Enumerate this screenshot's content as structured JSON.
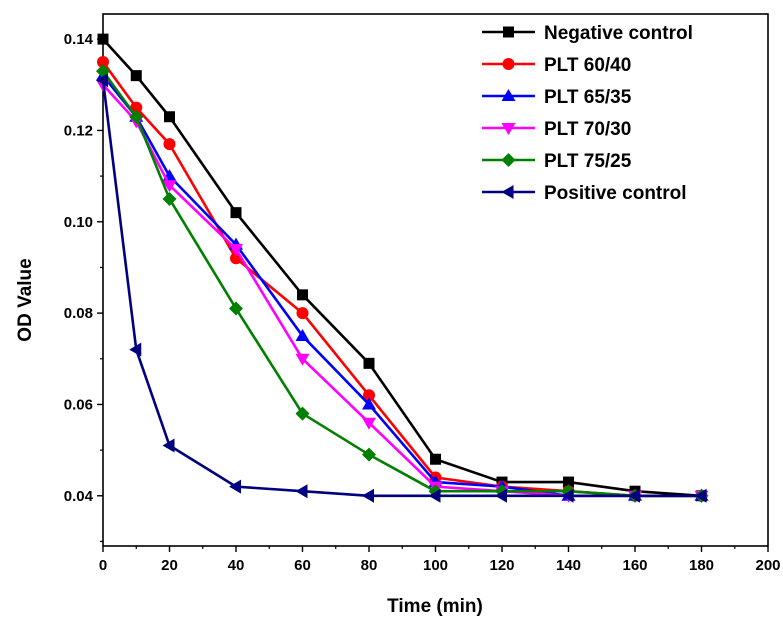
{
  "chart_data": {
    "type": "line",
    "xlabel": "Time (min)",
    "ylabel": "OD Value",
    "xlim": [
      0,
      200
    ],
    "ylim": [
      0.029,
      0.1455
    ],
    "xticks": [
      0,
      20,
      40,
      60,
      80,
      100,
      120,
      140,
      160,
      180,
      200
    ],
    "yticks": [
      0.04,
      0.06,
      0.08,
      0.1,
      0.12,
      0.14
    ],
    "xtick_labels": [
      "0",
      "20",
      "40",
      "60",
      "80",
      "100",
      "120",
      "140",
      "160",
      "180",
      "200"
    ],
    "ytick_labels": [
      "0.04",
      "0.06",
      "0.08",
      "0.10",
      "0.12",
      "0.14"
    ],
    "grid": false,
    "legend_position": "top-right",
    "x": [
      0,
      10,
      20,
      40,
      60,
      80,
      100,
      120,
      140,
      160,
      180
    ],
    "series": [
      {
        "name": "Negative control",
        "color": "#000000",
        "marker": "square",
        "values": [
          0.14,
          0.132,
          0.123,
          0.102,
          0.084,
          0.069,
          0.048,
          0.043,
          0.043,
          0.041,
          0.04
        ]
      },
      {
        "name": "PLT 60/40",
        "color": "#ff0000",
        "marker": "circle",
        "values": [
          0.135,
          0.125,
          0.117,
          0.092,
          0.08,
          0.062,
          0.044,
          0.042,
          0.041,
          0.04,
          0.04
        ]
      },
      {
        "name": "PLT 65/35",
        "color": "#0000ff",
        "marker": "triangle-up",
        "values": [
          0.132,
          0.123,
          0.11,
          0.095,
          0.075,
          0.06,
          0.043,
          0.042,
          0.04,
          0.04,
          0.04
        ]
      },
      {
        "name": "PLT 70/30",
        "color": "#ff00ff",
        "marker": "triangle-down",
        "values": [
          0.13,
          0.122,
          0.108,
          0.094,
          0.07,
          0.056,
          0.042,
          0.041,
          0.04,
          0.04,
          0.04
        ]
      },
      {
        "name": "PLT 75/25",
        "color": "#008000",
        "marker": "diamond",
        "values": [
          0.133,
          0.123,
          0.105,
          0.081,
          0.058,
          0.049,
          0.041,
          0.041,
          0.041,
          0.04,
          0.04
        ]
      },
      {
        "name": "Positive control",
        "color": "#000080",
        "marker": "triangle-left",
        "values": [
          0.131,
          0.072,
          0.051,
          0.042,
          0.041,
          0.04,
          0.04,
          0.04,
          0.04,
          0.04,
          0.04
        ]
      }
    ]
  }
}
